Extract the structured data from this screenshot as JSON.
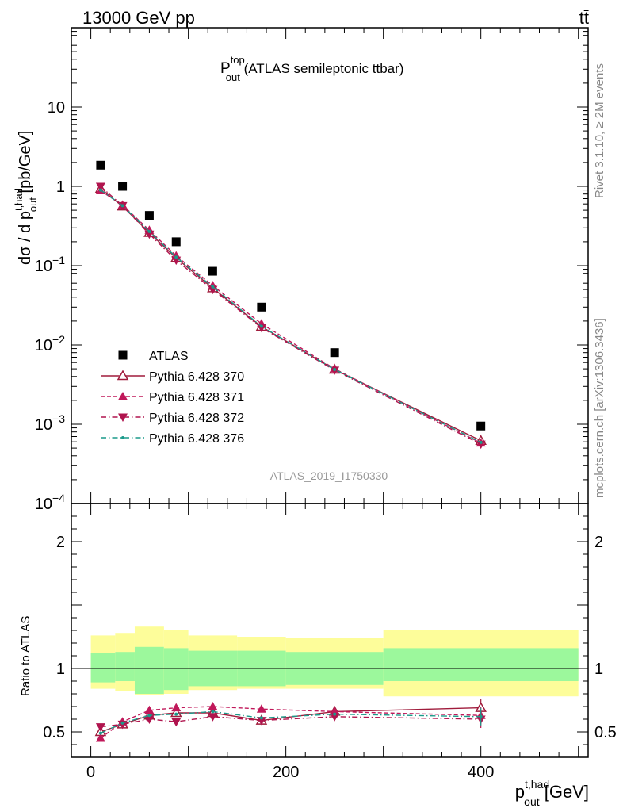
{
  "header": {
    "left": "13000 GeV pp",
    "right": "tt̄"
  },
  "side_text": {
    "rivet": "Rivet 3.1.10, ≥ 2M events",
    "mcplots": "mcplots.cern.ch [arXiv:1306.3436]"
  },
  "chart_data": [
    {
      "type": "scatter",
      "panel": "main",
      "title": {
        "main": "P",
        "sup": "top",
        "sub": "out",
        "rest": " (ATLAS semileptonic ttbar)"
      },
      "ylabel": {
        "pre": "dσ / d p",
        "sup": "t,had",
        "sub": "out",
        "post": " [pb/GeV]"
      },
      "yscale": "log",
      "ylim": [
        0.0001,
        100
      ],
      "xlim": [
        -20,
        510
      ],
      "yticks": [
        {
          "value": 10,
          "label": "10"
        },
        {
          "value": 1,
          "label": "1"
        },
        {
          "value": 0.1,
          "base": "10",
          "exp": "−1"
        },
        {
          "value": 0.01,
          "base": "10",
          "exp": "−2"
        },
        {
          "value": 0.001,
          "base": "10",
          "exp": "−3"
        },
        {
          "value": 0.0001,
          "base": "10",
          "exp": "−4"
        }
      ],
      "watermark": "ATLAS_2019_I1750330",
      "x": [
        10,
        32.5,
        60,
        87.5,
        125,
        175,
        250,
        400
      ],
      "series": [
        {
          "name": "ATLAS",
          "color": "#000000",
          "marker": "square",
          "values": [
            1.85,
            1.0,
            0.43,
            0.2,
            0.085,
            0.03,
            0.008,
            0.00095
          ]
        },
        {
          "name": "Pythia 6.428 370",
          "color": "#a01c3c",
          "marker": "triangle-up-open",
          "line": "solid",
          "values": [
            0.93,
            0.56,
            0.26,
            0.125,
            0.052,
            0.017,
            0.0049,
            0.00062
          ]
        },
        {
          "name": "Pythia 6.428 371",
          "color": "#c0185a",
          "marker": "triangle-up",
          "line": "dashed",
          "values": [
            0.88,
            0.58,
            0.28,
            0.133,
            0.056,
            0.0185,
            0.005,
            0.00058
          ]
        },
        {
          "name": "Pythia 6.428 372",
          "color": "#b0144e",
          "marker": "triangle-down",
          "line": "dashdot",
          "values": [
            1.0,
            0.57,
            0.25,
            0.117,
            0.05,
            0.0165,
            0.0048,
            0.00056
          ]
        },
        {
          "name": "Pythia 6.428 376",
          "color": "#1a9a8a",
          "marker": "dot",
          "line": "dashdot",
          "values": [
            0.9,
            0.57,
            0.27,
            0.128,
            0.054,
            0.0172,
            0.0049,
            0.00059
          ]
        }
      ]
    },
    {
      "type": "scatter",
      "panel": "ratio",
      "ylabel": "Ratio to ATLAS",
      "xlabel": {
        "pre": "p",
        "sup": "t,had",
        "sub": "out",
        "post": " [GeV]"
      },
      "ylim": [
        0.3,
        2.3
      ],
      "xlim": [
        -20,
        510
      ],
      "yticks": [
        0.5,
        1,
        2
      ],
      "xticks": [
        0,
        200,
        400
      ],
      "bands": {
        "edges": [
          0,
          25,
          45,
          75,
          100,
          150,
          200,
          300,
          500
        ],
        "stat": [
          [
            0.89,
            1.12
          ],
          [
            0.9,
            1.13
          ],
          [
            0.8,
            1.17
          ],
          [
            0.83,
            1.16
          ],
          [
            0.86,
            1.14
          ],
          [
            0.86,
            1.14
          ],
          [
            0.87,
            1.13
          ],
          [
            0.9,
            1.16
          ]
        ],
        "total": [
          [
            0.84,
            1.26
          ],
          [
            0.82,
            1.28
          ],
          [
            0.79,
            1.33
          ],
          [
            0.8,
            1.3
          ],
          [
            0.83,
            1.26
          ],
          [
            0.84,
            1.25
          ],
          [
            0.84,
            1.24
          ],
          [
            0.78,
            1.3
          ]
        ],
        "stat_color": "#9cf89c",
        "total_color": "#fdfd9a"
      },
      "x": [
        10,
        32.5,
        60,
        87.5,
        125,
        175,
        250,
        400
      ],
      "series": [
        {
          "name": "Pythia 6.428 370",
          "values": [
            0.5,
            0.56,
            0.63,
            0.65,
            0.65,
            0.59,
            0.66,
            0.69
          ]
        },
        {
          "name": "Pythia 6.428 371",
          "values": [
            0.45,
            0.58,
            0.67,
            0.69,
            0.7,
            0.68,
            0.66,
            0.63
          ]
        },
        {
          "name": "Pythia 6.428 372",
          "values": [
            0.54,
            0.56,
            0.6,
            0.58,
            0.62,
            0.59,
            0.62,
            0.6
          ]
        },
        {
          "name": "Pythia 6.428 376",
          "values": [
            0.49,
            0.57,
            0.63,
            0.64,
            0.66,
            0.61,
            0.64,
            0.62
          ]
        }
      ]
    }
  ]
}
